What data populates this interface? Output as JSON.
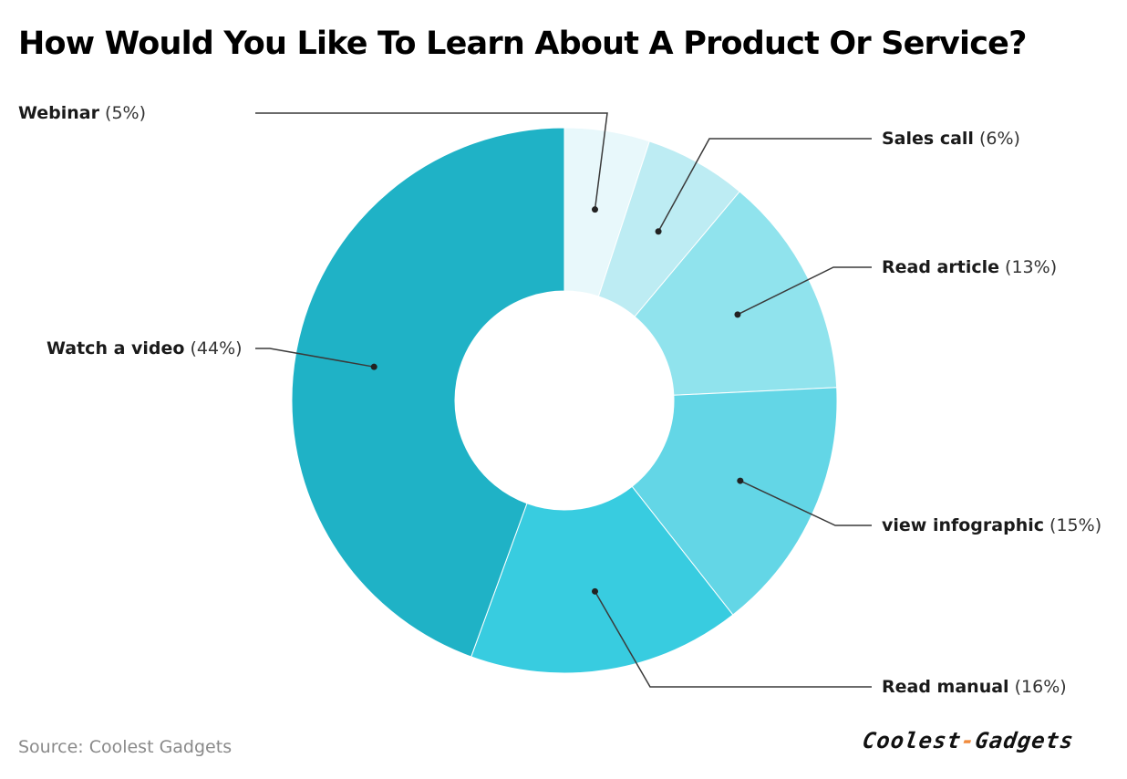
{
  "title": "How Would You Like To Learn About A Product Or Service?",
  "source": "Source: Coolest Gadgets",
  "logo": {
    "part1": "Coolest",
    "separator": "-",
    "part2": "Gadgets",
    "accent_color": "#f08a3c"
  },
  "chart_data": {
    "type": "pie",
    "variant": "donut",
    "title": "How Would You Like To Learn About A Product Or Service?",
    "unit": "%",
    "slices": [
      {
        "label": "Webinar",
        "value": 5,
        "value_label": "(5%)",
        "color": "#e8f8fb"
      },
      {
        "label": "Sales call",
        "value": 6,
        "value_label": "(6%)",
        "color": "#bdecf3"
      },
      {
        "label": "Read article",
        "value": 13,
        "value_label": "(13%)",
        "color": "#90e3ed"
      },
      {
        "label": "view infographic",
        "value": 15,
        "value_label": "(15%)",
        "color": "#63d6e6"
      },
      {
        "label": "Read manual",
        "value": 16,
        "value_label": "(16%)",
        "color": "#38cce0"
      },
      {
        "label": "Watch a video",
        "value": 44,
        "value_label": "(44%)",
        "color": "#1fb2c6"
      }
    ]
  }
}
